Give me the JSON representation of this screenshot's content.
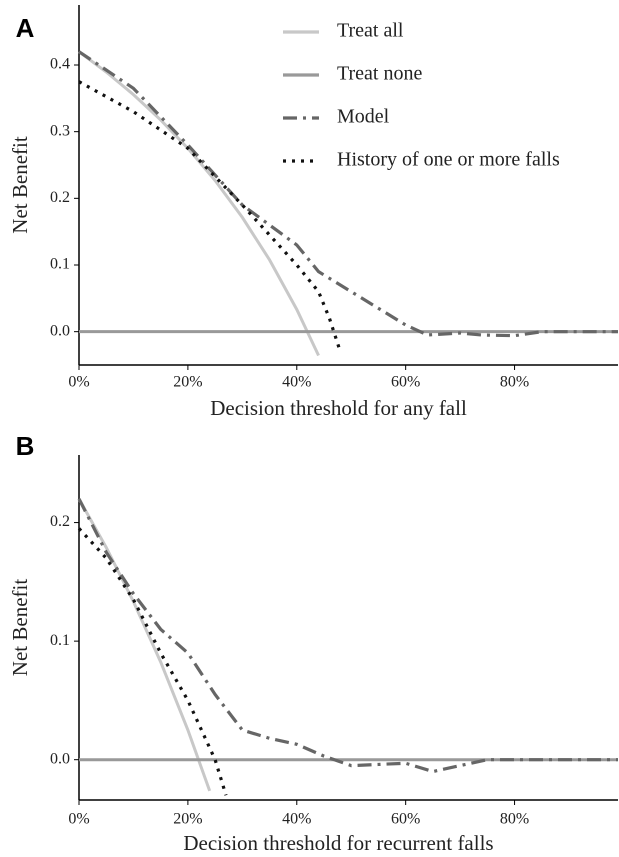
{
  "chart_data": [
    {
      "type": "line",
      "panel_label": "A",
      "x_label": "Decision threshold for any fall",
      "y_label": "Net Benefit",
      "xlim": [
        0,
        99
      ],
      "ylim": [
        -0.05,
        0.49
      ],
      "xticks": [
        {
          "value": 0,
          "label": "0%"
        },
        {
          "value": 20,
          "label": "20%"
        },
        {
          "value": 40,
          "label": "40%"
        },
        {
          "value": 60,
          "label": "60%"
        },
        {
          "value": 80,
          "label": "80%"
        }
      ],
      "yticks": [
        {
          "value": 0,
          "label": "0.0"
        },
        0.1,
        0.2,
        0.3,
        0.4
      ],
      "grid": false,
      "legend": "top-right",
      "series": [
        {
          "name": "Treat all",
          "color": "#c8c8c8",
          "dash": "solid",
          "x": [
            0,
            5,
            10,
            15,
            20,
            25,
            30,
            35,
            40,
            44
          ],
          "values": [
            0.42,
            0.3895,
            0.3556,
            0.3176,
            0.275,
            0.2267,
            0.1714,
            0.1077,
            0.0333,
            -0.0357
          ]
        },
        {
          "name": "Treat none",
          "color": "#999999",
          "dash": "solid",
          "x": [
            0,
            99
          ],
          "values": [
            0,
            0
          ]
        },
        {
          "name": "Model",
          "color": "#666666",
          "dash": "dashdot",
          "x": [
            0,
            10,
            20,
            30,
            35,
            40,
            44,
            50,
            55,
            60,
            64,
            70,
            74,
            80,
            85,
            99
          ],
          "values": [
            0.42,
            0.365,
            0.28,
            0.19,
            0.16,
            0.13,
            0.09,
            0.06,
            0.035,
            0.01,
            -0.005,
            -0.002,
            -0.005,
            -0.006,
            0,
            0
          ]
        },
        {
          "name": "History of one or more falls",
          "color": "#111111",
          "dash": "dotted",
          "x": [
            0,
            10,
            20,
            30,
            35,
            40,
            44,
            46,
            48
          ],
          "values": [
            0.375,
            0.33,
            0.275,
            0.19,
            0.145,
            0.1,
            0.06,
            0.02,
            -0.03
          ]
        }
      ]
    },
    {
      "type": "line",
      "panel_label": "B",
      "x_label": "Decision threshold for recurrent falls",
      "y_label": "Net Benefit",
      "xlim": [
        0,
        99
      ],
      "ylim": [
        -0.034,
        0.257
      ],
      "xticks": [
        {
          "value": 0,
          "label": "0%"
        },
        {
          "value": 20,
          "label": "20%"
        },
        {
          "value": 40,
          "label": "40%"
        },
        {
          "value": 60,
          "label": "60%"
        },
        {
          "value": 80,
          "label": "80%"
        }
      ],
      "yticks": [
        {
          "value": 0,
          "label": "0.0"
        },
        0.1,
        0.2
      ],
      "grid": false,
      "series": [
        {
          "color": "#c8c8c8",
          "dash": "solid",
          "x": [
            0,
            5,
            10,
            15,
            20,
            24
          ],
          "values": [
            0.22,
            0.179,
            0.1333,
            0.0824,
            0.025,
            -0.0263
          ]
        },
        {
          "color": "#999999",
          "dash": "solid",
          "x": [
            0,
            99
          ],
          "values": [
            0,
            0
          ]
        },
        {
          "color": "#666666",
          "dash": "dashdot",
          "x": [
            0,
            5,
            10,
            15,
            20,
            25,
            30,
            35,
            40,
            45,
            50,
            55,
            60,
            65,
            70,
            75,
            99
          ],
          "values": [
            0.22,
            0.175,
            0.14,
            0.11,
            0.09,
            0.055,
            0.025,
            0.018,
            0.013,
            0.003,
            -0.005,
            -0.004,
            -0.003,
            -0.01,
            -0.005,
            0,
            0
          ]
        },
        {
          "color": "#111111",
          "dash": "dotted",
          "x": [
            0,
            5,
            10,
            15,
            20,
            25,
            27
          ],
          "values": [
            0.195,
            0.17,
            0.135,
            0.09,
            0.05,
            0,
            -0.03
          ]
        }
      ]
    }
  ]
}
